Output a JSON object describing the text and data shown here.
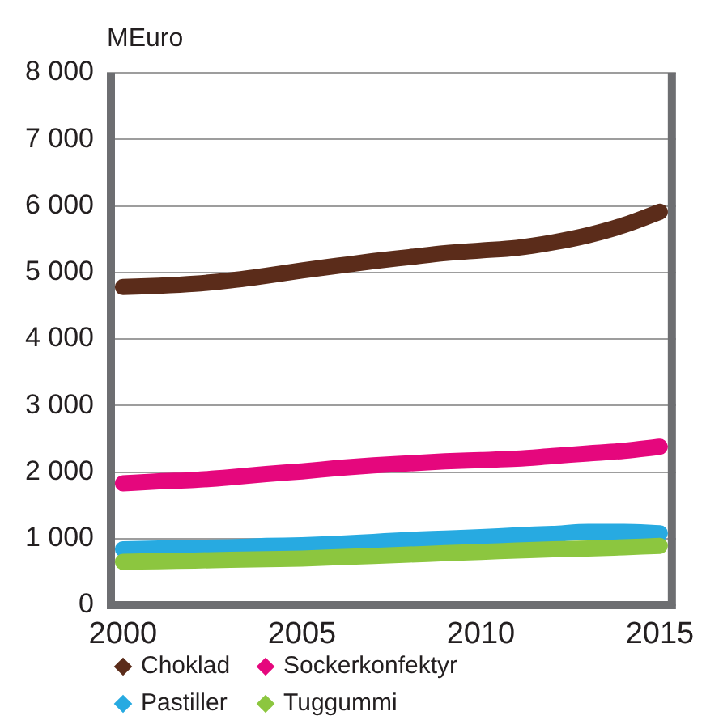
{
  "chart_data": {
    "type": "line",
    "ylabel": "MEuro",
    "x": [
      2000,
      2001,
      2002,
      2003,
      2004,
      2005,
      2006,
      2007,
      2008,
      2009,
      2010,
      2011,
      2012,
      2013,
      2014,
      2015
    ],
    "series": [
      {
        "name": "Choklad",
        "color": "#5b2c1a",
        "values": [
          4780,
          4800,
          4830,
          4880,
          4950,
          5030,
          5100,
          5170,
          5230,
          5290,
          5330,
          5370,
          5450,
          5560,
          5710,
          5910
        ]
      },
      {
        "name": "Sockerkonfektyr",
        "color": "#e5077d",
        "values": [
          1830,
          1860,
          1880,
          1920,
          1970,
          2010,
          2060,
          2100,
          2130,
          2160,
          2180,
          2200,
          2240,
          2280,
          2320,
          2380
        ]
      },
      {
        "name": "Pastiller",
        "color": "#27aae1",
        "values": [
          840,
          850,
          860,
          870,
          890,
          900,
          920,
          950,
          980,
          1000,
          1020,
          1050,
          1070,
          1100,
          1100,
          1080
        ]
      },
      {
        "name": "Tuggummi",
        "color": "#8cc63f",
        "values": [
          650,
          660,
          670,
          680,
          690,
          700,
          720,
          740,
          760,
          780,
          800,
          820,
          840,
          850,
          870,
          890
        ]
      }
    ],
    "xlim": [
      1999.55,
      2015.45
    ],
    "xticks": [
      2000,
      2005,
      2010,
      2015
    ],
    "ylim": [
      0,
      8000
    ],
    "yticks": [
      0,
      {
        "value": 1000,
        "label": "1 000"
      },
      {
        "value": 2000,
        "label": "2 000"
      },
      {
        "value": 3000,
        "label": "3 000"
      },
      {
        "value": 4000,
        "label": "4 000"
      },
      {
        "value": 5000,
        "label": "5 000"
      },
      {
        "value": 6000,
        "label": "6 000"
      },
      {
        "value": 7000,
        "label": "7 000"
      },
      {
        "value": 8000,
        "label": "8 000"
      }
    ],
    "grid": "y",
    "legend": "bottom",
    "line_style": "solid"
  }
}
